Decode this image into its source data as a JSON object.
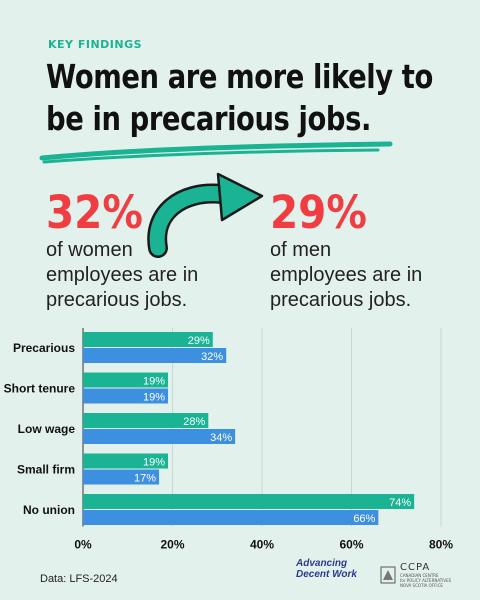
{
  "kicker": "KEY FINDINGS",
  "headline_line1": "Women are more likely to",
  "headline_line2": "be in precarious jobs.",
  "stat_women": {
    "value": "32%",
    "description": "of women\nemployees are in\nprecarious jobs."
  },
  "stat_men": {
    "value": "29%",
    "description": "of men\nemployees are in\nprecarious jobs."
  },
  "chart_data": {
    "type": "bar",
    "orientation": "horizontal",
    "categories": [
      "Precarious",
      "Short tenure",
      "Low wage",
      "Small firm",
      "No union"
    ],
    "series": [
      {
        "values": [
          29,
          19,
          28,
          19,
          74
        ],
        "labels": [
          "29%",
          "19%",
          "28%",
          "19%",
          "74%"
        ],
        "color": "#1ab394"
      },
      {
        "values": [
          32,
          19,
          34,
          17,
          66
        ],
        "labels": [
          "32%",
          "19%",
          "34%",
          "17%",
          "66%"
        ],
        "color": "#3d8fe0"
      }
    ],
    "xlim": [
      0,
      80
    ],
    "xticks": [
      "0%",
      "20%",
      "40%",
      "60%",
      "80%"
    ],
    "grid": true
  },
  "source": "Data: LFS-2024",
  "logos": {
    "adw_line1": "Advancing",
    "adw_line2": "Decent Work",
    "ccpa_name": "CCPA",
    "ccpa_sub1": "CANADIAN CENTRE",
    "ccpa_sub2": "for POLICY ALTERNATIVES",
    "ccpa_sub3": "NOVA SCOTIA OFFICE"
  },
  "colors": {
    "accent": "#1ab394",
    "highlight": "#ef3d42",
    "men_bar": "#1ab394",
    "women_bar": "#3d8fe0",
    "background": "#e3f1ec"
  }
}
